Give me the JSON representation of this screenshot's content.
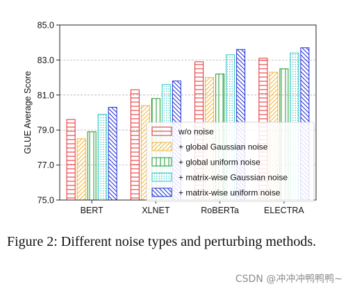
{
  "figure": {
    "caption": "Figure 2:  Different noise types and perturbing methods.",
    "watermark": "CSDN @冲冲冲鸭鸭鸭~"
  },
  "chart_data": {
    "type": "bar",
    "title": "",
    "xlabel": "",
    "ylabel": "GLUE Average Score",
    "ylim": [
      75.0,
      85.0
    ],
    "yticks": [
      "75.0",
      "77.0",
      "79.0",
      "81.0",
      "83.0",
      "85.0"
    ],
    "grid": "horizontal dashed",
    "legend_position": "lower-right",
    "categories": [
      "BERT",
      "XLNET",
      "RoBERTa",
      "ELECTRA"
    ],
    "series": [
      {
        "name": "w/o noise",
        "color": "#e8262a",
        "pattern": "horizontal",
        "values": [
          79.6,
          81.3,
          82.9,
          83.1
        ]
      },
      {
        "name": "+ global Gaussian noise",
        "color": "#f5b335",
        "pattern": "diagonal",
        "values": [
          78.5,
          80.4,
          82.0,
          82.3
        ]
      },
      {
        "name": "+ global uniform noise",
        "color": "#1a9a2a",
        "pattern": "vertical",
        "values": [
          78.9,
          80.8,
          82.2,
          82.5
        ]
      },
      {
        "name": "+ matrix-wise Gaussian noise",
        "color": "#2bc7c4",
        "pattern": "dots",
        "values": [
          79.9,
          81.6,
          83.3,
          83.4
        ]
      },
      {
        "name": "+ matrix-wise uniform noise",
        "color": "#1f2bd6",
        "pattern": "backdiagonal",
        "values": [
          80.3,
          81.8,
          83.6,
          83.7
        ]
      }
    ]
  }
}
